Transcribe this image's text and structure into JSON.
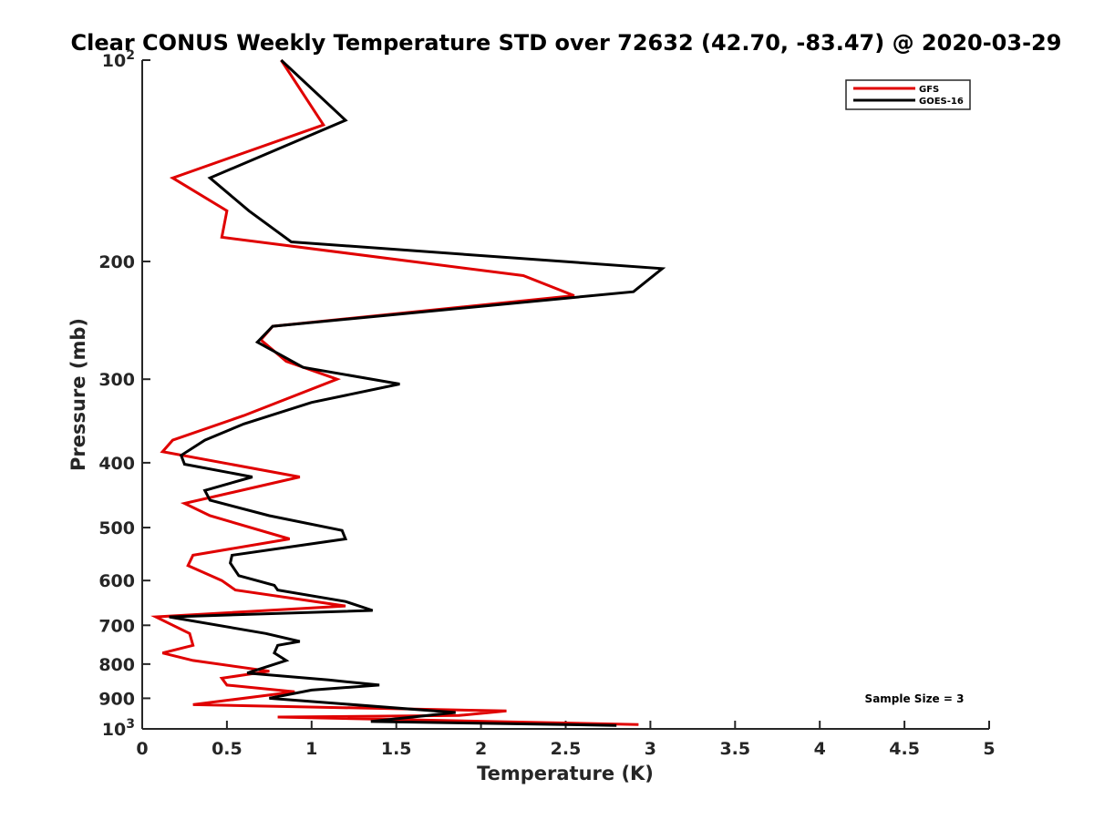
{
  "chart_data": {
    "type": "line",
    "title": "Clear CONUS Weekly Temperature STD over 72632 (42.70, -83.47) @ 2020-03-29",
    "xlabel": "Temperature (K)",
    "ylabel": "Pressure (mb)",
    "xlim": [
      0,
      5
    ],
    "ylim": [
      100,
      1000
    ],
    "y_scale": "log",
    "y_reversed": true,
    "grid": false,
    "legend_position": "top-right",
    "x_ticks": [
      "0",
      "0.5",
      "1",
      "1.5",
      "2",
      "2.5",
      "3",
      "3.5",
      "4",
      "4.5",
      "5"
    ],
    "y_ticks": [
      {
        "value": 100,
        "label": "10",
        "exp": "2"
      },
      {
        "value": 200,
        "label": "200"
      },
      {
        "value": 300,
        "label": "300"
      },
      {
        "value": 400,
        "label": "400"
      },
      {
        "value": 500,
        "label": "500"
      },
      {
        "value": 600,
        "label": "600"
      },
      {
        "value": 700,
        "label": "700"
      },
      {
        "value": 800,
        "label": "800"
      },
      {
        "value": 900,
        "label": "900"
      },
      {
        "value": 1000,
        "label": "10",
        "exp": "3"
      }
    ],
    "annotation": "Sample Size = 3",
    "series": [
      {
        "name": "GFS",
        "color": "#e00000",
        "points": [
          [
            0.82,
            100
          ],
          [
            1.07,
            125
          ],
          [
            0.18,
            150
          ],
          [
            0.5,
            168
          ],
          [
            0.47,
            184
          ],
          [
            2.25,
            210
          ],
          [
            2.55,
            225
          ],
          [
            0.77,
            250
          ],
          [
            0.7,
            262
          ],
          [
            0.85,
            282
          ],
          [
            1.15,
            300
          ],
          [
            0.6,
            340
          ],
          [
            0.18,
            370
          ],
          [
            0.12,
            385
          ],
          [
            0.93,
            420
          ],
          [
            0.25,
            460
          ],
          [
            0.4,
            480
          ],
          [
            0.87,
            520
          ],
          [
            0.3,
            550
          ],
          [
            0.27,
            570
          ],
          [
            0.47,
            600
          ],
          [
            0.55,
            620
          ],
          [
            1.2,
            655
          ],
          [
            0.08,
            680
          ],
          [
            0.28,
            720
          ],
          [
            0.3,
            750
          ],
          [
            0.12,
            770
          ],
          [
            0.3,
            790
          ],
          [
            0.75,
            820
          ],
          [
            0.47,
            840
          ],
          [
            0.5,
            860
          ],
          [
            0.9,
            880
          ],
          [
            0.3,
            920
          ],
          [
            2.15,
            940
          ],
          [
            1.87,
            955
          ],
          [
            0.8,
            960
          ],
          [
            2.93,
            985
          ]
        ]
      },
      {
        "name": "GOES-16",
        "color": "#000000",
        "points": [
          [
            0.82,
            100
          ],
          [
            1.2,
            123
          ],
          [
            0.4,
            150
          ],
          [
            0.63,
            168
          ],
          [
            0.88,
            187
          ],
          [
            3.07,
            205
          ],
          [
            2.9,
            222
          ],
          [
            0.77,
            250
          ],
          [
            0.68,
            264
          ],
          [
            0.95,
            288
          ],
          [
            1.52,
            305
          ],
          [
            1.0,
            325
          ],
          [
            0.6,
            350
          ],
          [
            0.37,
            370
          ],
          [
            0.23,
            390
          ],
          [
            0.25,
            402
          ],
          [
            0.65,
            420
          ],
          [
            0.37,
            440
          ],
          [
            0.4,
            455
          ],
          [
            0.75,
            480
          ],
          [
            1.18,
            505
          ],
          [
            1.2,
            520
          ],
          [
            0.53,
            550
          ],
          [
            0.52,
            565
          ],
          [
            0.57,
            590
          ],
          [
            0.78,
            610
          ],
          [
            0.8,
            620
          ],
          [
            1.2,
            645
          ],
          [
            1.36,
            665
          ],
          [
            0.16,
            680
          ],
          [
            0.73,
            720
          ],
          [
            0.93,
            740
          ],
          [
            0.8,
            750
          ],
          [
            0.78,
            770
          ],
          [
            0.85,
            790
          ],
          [
            0.62,
            825
          ],
          [
            1.1,
            845
          ],
          [
            1.4,
            860
          ],
          [
            1.0,
            875
          ],
          [
            0.75,
            900
          ],
          [
            1.85,
            945
          ],
          [
            1.35,
            975
          ],
          [
            2.8,
            988
          ]
        ]
      }
    ]
  }
}
